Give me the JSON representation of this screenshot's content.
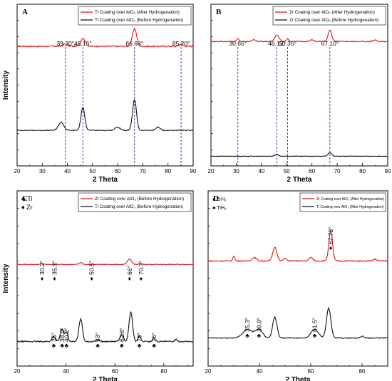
{
  "chart_data": [
    {
      "panel": "A",
      "type": "line",
      "xlabel": "2 Theta",
      "ylabel": "Intensity",
      "xlim": [
        20,
        90
      ],
      "xticks": [
        "20",
        "30",
        "40",
        "50",
        "60",
        "70",
        "80",
        "90"
      ],
      "colors": {
        "after": "#e0181b",
        "before": "#111111",
        "dash": "#2233aa"
      },
      "legend": {
        "placement": "top-right",
        "entries": [
          {
            "label": "Ti Coating over AlO₃ (After Hydrogenation)",
            "color": "#e0181b"
          },
          {
            "label": "Ti Coating over AlO₃ (Before Hydrogenation)",
            "color": "#111111"
          }
        ]
      },
      "peak_lines": [
        {
          "x": 39.2,
          "label": "39.20°"
        },
        {
          "x": 46.16,
          "label": "46.16°"
        },
        {
          "x": 66.68,
          "label": "66.68°"
        },
        {
          "x": 85.2,
          "label": "85.20°"
        }
      ],
      "series": [
        {
          "name": "Ti Coating over AlO₃ (After Hydrogenation)",
          "color": "#e0181b",
          "baseline": 0.74,
          "noise": 0.008,
          "peaks": [
            [
              39.2,
              0.015,
              1.2
            ],
            [
              46.16,
              0.05,
              1.3
            ],
            [
              66.68,
              0.11,
              1.2
            ],
            [
              85.2,
              0.015,
              1.0
            ]
          ]
        },
        {
          "name": "Ti Coating over AlO₃ (Before Hydrogenation)",
          "color": "#111111",
          "baseline": 0.22,
          "noise": 0.006,
          "peaks": [
            [
              37.5,
              0.05,
              1.5
            ],
            [
              46.16,
              0.14,
              1.1
            ],
            [
              60,
              0.02,
              1.4
            ],
            [
              66.68,
              0.19,
              1.1
            ],
            [
              76,
              0.02,
              1.2
            ]
          ]
        }
      ]
    },
    {
      "panel": "B",
      "type": "line",
      "xlabel": "2 Theta",
      "ylabel": "",
      "xlim": [
        20,
        90
      ],
      "xticks": [
        "20",
        "30",
        "40",
        "50",
        "60",
        "70",
        "80",
        "90"
      ],
      "colors": {
        "after": "#e0181b",
        "before": "#111111",
        "dash": "#2233aa"
      },
      "legend": {
        "placement": "top-right",
        "entries": [
          {
            "label": "Zr Coating over AlO₃ (After Hydrogenation)",
            "color": "#e0181b"
          },
          {
            "label": "Zr Coating over AlO₃ (Before Hydrogenation)",
            "color": "#111111"
          }
        ]
      },
      "peak_lines": [
        {
          "x": 30.65,
          "label": "30.65°"
        },
        {
          "x": 46.12,
          "label": "46.12°"
        },
        {
          "x": 50.35,
          "label": "50.35°"
        },
        {
          "x": 67.1,
          "label": "67.10°"
        }
      ],
      "series": [
        {
          "name": "Zr Coating over AlO₃ (After Hydrogenation)",
          "color": "#e0181b",
          "baseline": 0.77,
          "noise": 0.006,
          "peaks": [
            [
              30.65,
              0.02,
              0.6
            ],
            [
              37,
              0.01,
              1.0
            ],
            [
              46.12,
              0.04,
              1.2
            ],
            [
              50.35,
              0.015,
              0.8
            ],
            [
              60,
              0.01,
              1.0
            ],
            [
              67.1,
              0.07,
              1.0
            ],
            [
              85,
              0.01,
              1.0
            ]
          ]
        },
        {
          "name": "Zr Coating over AlO₃ (Before Hydrogenation)",
          "color": "#111111",
          "baseline": 0.06,
          "noise": 0.003,
          "peaks": [
            [
              46,
              0.012,
              1.0
            ],
            [
              67.1,
              0.022,
              1.0
            ]
          ]
        }
      ]
    },
    {
      "panel": "C",
      "type": "line",
      "xlabel": "2 Theta",
      "ylabel": "Intensity",
      "xlim": [
        20,
        92
      ],
      "xticks": [
        "20",
        "40",
        "60",
        "80"
      ],
      "xtick_values": [
        20,
        40,
        60,
        80
      ],
      "colors": {
        "after": "#e0181b",
        "before": "#111111"
      },
      "marker_legend": [
        {
          "symbol": "♣",
          "label": "Ti"
        },
        {
          "symbol": "♦",
          "label": "Zr"
        }
      ],
      "legend": {
        "placement": "top-right",
        "entries": [
          {
            "label": "Zr Coating over AlO₃ (Before Hydrogenation)",
            "color": "#e0181b"
          },
          {
            "label": "Ti Coating over AlO₃ (Before Hydrogenation)",
            "color": "#111111"
          }
        ]
      },
      "annotations": [
        {
          "x": 30.2,
          "symbol": "♦",
          "label": "30.2°",
          "row": "upper"
        },
        {
          "x": 35.3,
          "symbol": "♦",
          "label": "35.3°",
          "row": "upper"
        },
        {
          "x": 50.5,
          "symbol": "♦",
          "label": "50.5°",
          "row": "upper"
        },
        {
          "x": 66,
          "symbol": "♦",
          "label": "66°",
          "row": "upper"
        },
        {
          "x": 70.7,
          "symbol": "♦",
          "label": "70.7°",
          "row": "upper"
        },
        {
          "x": 35,
          "symbol": "♣",
          "label": "35°",
          "row": "lower"
        },
        {
          "x": 38.4,
          "symbol": "♣",
          "label": "38.4°",
          "row": "lower"
        },
        {
          "x": 40.2,
          "symbol": "♣",
          "label": "40.2°",
          "row": "lower"
        },
        {
          "x": 53,
          "symbol": "♣",
          "label": "53°",
          "row": "lower"
        },
        {
          "x": 62.8,
          "symbol": "♣",
          "label": "62.8°",
          "row": "lower"
        },
        {
          "x": 70,
          "symbol": "♣",
          "label": "70°",
          "row": "lower"
        },
        {
          "x": 76,
          "symbol": "♣",
          "label": "76°",
          "row": "lower"
        }
      ],
      "series": [
        {
          "name": "Zr Coating over AlO₃ (Before Hydrogenation)",
          "color": "#e0181b",
          "baseline": 0.58,
          "noise": 0.004,
          "peaks": [
            [
              30.2,
              0.006,
              0.6
            ],
            [
              46,
              0.01,
              1.0
            ],
            [
              66,
              0.03,
              1.2
            ],
            [
              70.7,
              0.005,
              0.8
            ]
          ]
        },
        {
          "name": "Ti Coating over AlO₃ (Before Hydrogenation)",
          "color": "#111111",
          "baseline": 0.14,
          "noise": 0.007,
          "peaks": [
            [
              35,
              0.03,
              1.0
            ],
            [
              38.4,
              0.07,
              1.0
            ],
            [
              40.2,
              0.05,
              0.8
            ],
            [
              46,
              0.13,
              1.0
            ],
            [
              53,
              0.01,
              1.0
            ],
            [
              62.8,
              0.04,
              1.0
            ],
            [
              66.5,
              0.17,
              1.0
            ],
            [
              70,
              0.03,
              0.8
            ],
            [
              76,
              0.02,
              0.8
            ],
            [
              85,
              0.012,
              0.8
            ]
          ]
        }
      ]
    },
    {
      "panel": "D",
      "type": "line",
      "xlabel": "2 Theta",
      "ylabel": "",
      "xlim": [
        20,
        90
      ],
      "xticks": [
        "20",
        "40",
        "60",
        "80"
      ],
      "xtick_values": [
        20,
        40,
        60,
        80
      ],
      "colors": {
        "after": "#e0181b",
        "before": "#111111"
      },
      "marker_legend": [
        {
          "symbol": "♦",
          "label": "ZrH₂"
        },
        {
          "symbol": "♣",
          "label": "TiH₂"
        }
      ],
      "legend": {
        "placement": "top-right",
        "entries": [
          {
            "label": "Zr Coating over AlO₃ (After Hydrogenation)",
            "color": "#e0181b"
          },
          {
            "label": "Ti Coating over AlO₃ (After Hydrogenation)",
            "color": "#111111"
          }
        ]
      },
      "annotations": [
        {
          "x": 67.78,
          "symbol": "♦",
          "label": "67.78°",
          "row": "upper"
        },
        {
          "x": 35.3,
          "symbol": "♣",
          "label": "35.3°",
          "row": "lower"
        },
        {
          "x": 39.8,
          "symbol": "♣",
          "label": "39.8°",
          "row": "lower"
        },
        {
          "x": 61.5,
          "symbol": "♣",
          "label": "61.5°",
          "row": "lower"
        }
      ],
      "series": [
        {
          "name": "Zr Coating over AlO₃ (After Hydrogenation)",
          "color": "#e0181b",
          "baseline": 0.6,
          "noise": 0.006,
          "peaks": [
            [
              30,
              0.03,
              0.5
            ],
            [
              38,
              0.02,
              1.2
            ],
            [
              46,
              0.08,
              1.1
            ],
            [
              50,
              0.015,
              0.8
            ],
            [
              60,
              0.02,
              1.0
            ],
            [
              67.78,
              0.17,
              1.0
            ],
            [
              85,
              0.01,
              1.0
            ]
          ]
        },
        {
          "name": "Ti Coating over AlO₃ (After Hydrogenation)",
          "color": "#111111",
          "baseline": 0.16,
          "noise": 0.005,
          "peaks": [
            [
              35.3,
              0.05,
              2.5
            ],
            [
              39.8,
              0.05,
              2.0
            ],
            [
              46,
              0.12,
              1.2
            ],
            [
              61.5,
              0.05,
              2.0
            ],
            [
              67,
              0.17,
              1.2
            ],
            [
              80,
              0.01,
              1.0
            ]
          ]
        }
      ]
    }
  ]
}
